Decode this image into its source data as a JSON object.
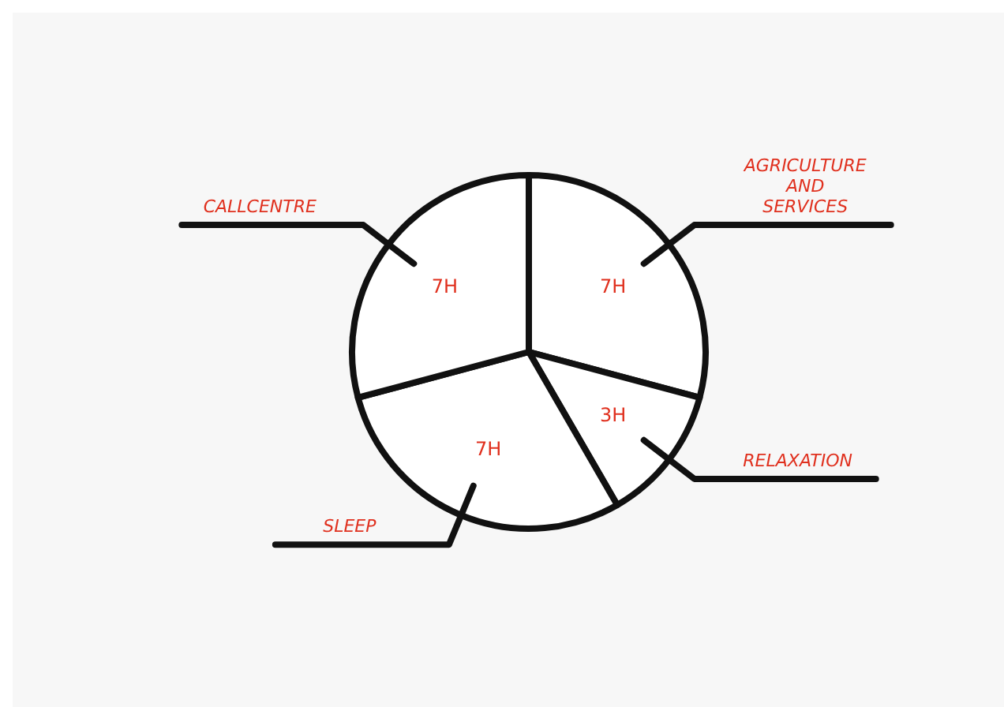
{
  "chart_data": {
    "type": "pie",
    "categories": [
      "AGRICULTURE AND SERVICES",
      "RELAXATION",
      "SLEEP",
      "CALLCENTRE"
    ],
    "values": [
      7,
      3,
      7,
      7
    ],
    "value_labels": [
      "7H",
      "3H",
      "7H",
      "7H"
    ],
    "colors": [
      "#ffffff",
      "#ffffff",
      "#ffffff",
      "#ffffff"
    ],
    "legend": false
  }
}
